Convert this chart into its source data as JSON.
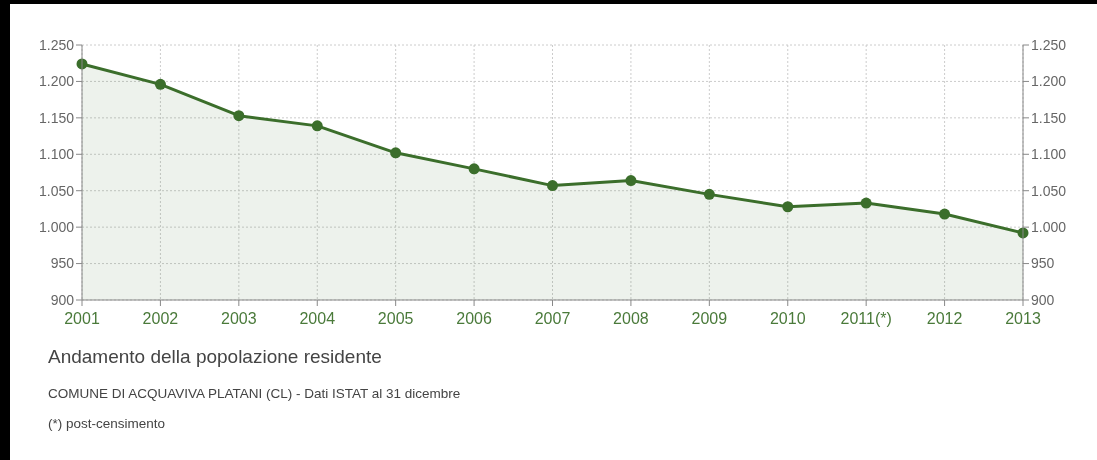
{
  "chart_data": {
    "type": "area",
    "title": "Andamento della popolazione residente",
    "annotations": [
      "COMUNE DI ACQUAVIVA PLATANI (CL) - Dati ISTAT al 31 dicembre",
      "(*) post-censimento"
    ],
    "categories": [
      "2001",
      "2002",
      "2003",
      "2004",
      "2005",
      "2006",
      "2007",
      "2008",
      "2009",
      "2010",
      "2011(*)",
      "2012",
      "2013"
    ],
    "series": [
      {
        "color": "#3b6e2b",
        "values": [
          1224,
          1196,
          1153,
          1139,
          1102,
          1080,
          1057,
          1064,
          1045,
          1028,
          1033,
          1018,
          992
        ]
      }
    ],
    "ylim": [
      900,
      1250
    ],
    "yticks": [
      900,
      950,
      {
        "value": 1000,
        "label": "1.000"
      },
      {
        "value": 1050,
        "label": "1.050"
      },
      {
        "value": 1100,
        "label": "1.100"
      },
      {
        "value": 1150,
        "label": "1.150"
      },
      {
        "value": 1200,
        "label": "1.200"
      },
      {
        "value": 1250,
        "label": "1.250"
      }
    ],
    "y2lim": [
      900,
      1250
    ],
    "y2ticks": [
      900,
      950,
      {
        "value": 1000,
        "label": "1.000"
      },
      {
        "value": 1050,
        "label": "1.050"
      },
      {
        "value": 1100,
        "label": "1.100"
      },
      {
        "value": 1150,
        "label": "1.150"
      },
      {
        "value": 1200,
        "label": "1.200"
      },
      {
        "value": 1250,
        "label": "1.250"
      }
    ],
    "grid": true,
    "marker": "circle",
    "line_style": "solid"
  }
}
